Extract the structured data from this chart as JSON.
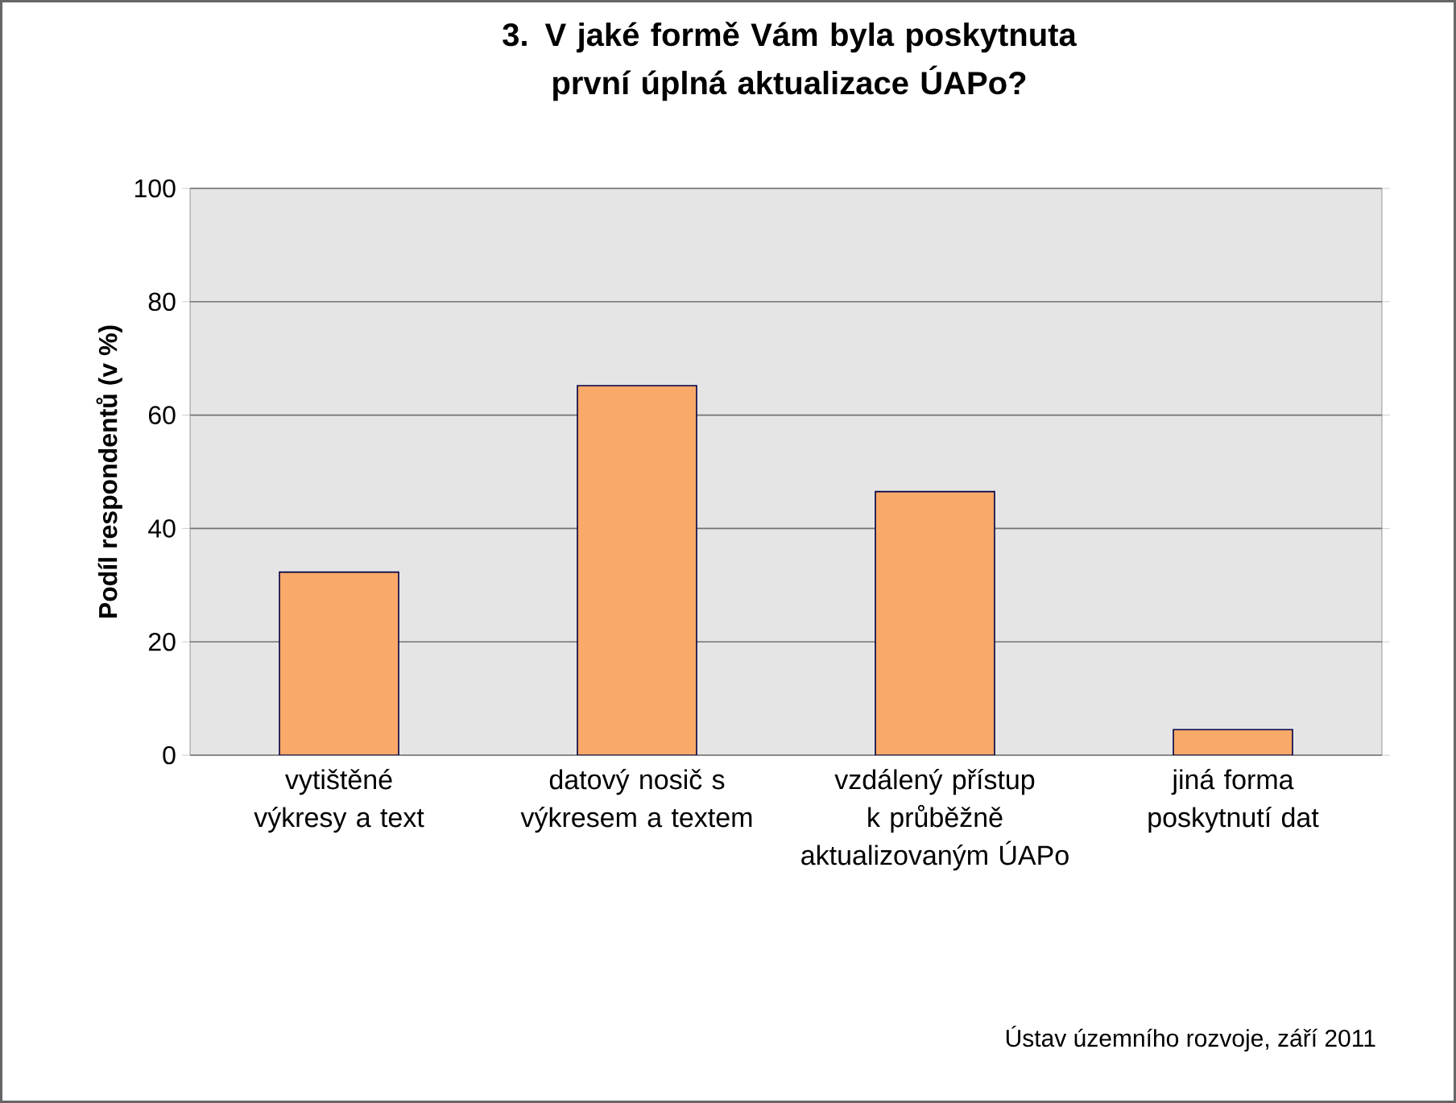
{
  "chart_data": {
    "type": "bar",
    "title": "3. V jaké formě Vám byla poskytnuta první úplná aktualizace ÚAPo?",
    "ylabel": "Podíl respondentů (v %)",
    "categories": [
      "vytištěné výkresy a text",
      "datový nosič s výkresem a textem",
      "vzdálený přístup k průběžně aktualizovaným ÚAPo",
      "jiná forma poskytnutí dat"
    ],
    "values": [
      32.3,
      65.2,
      46.5,
      4.5
    ],
    "color": "#f9a968",
    "ylim": [
      0,
      100
    ],
    "yticks": [
      0,
      20,
      40,
      60,
      80,
      100
    ],
    "grid": "y",
    "annotations": [
      "Ústav územního rozvoje, září 2011"
    ]
  }
}
